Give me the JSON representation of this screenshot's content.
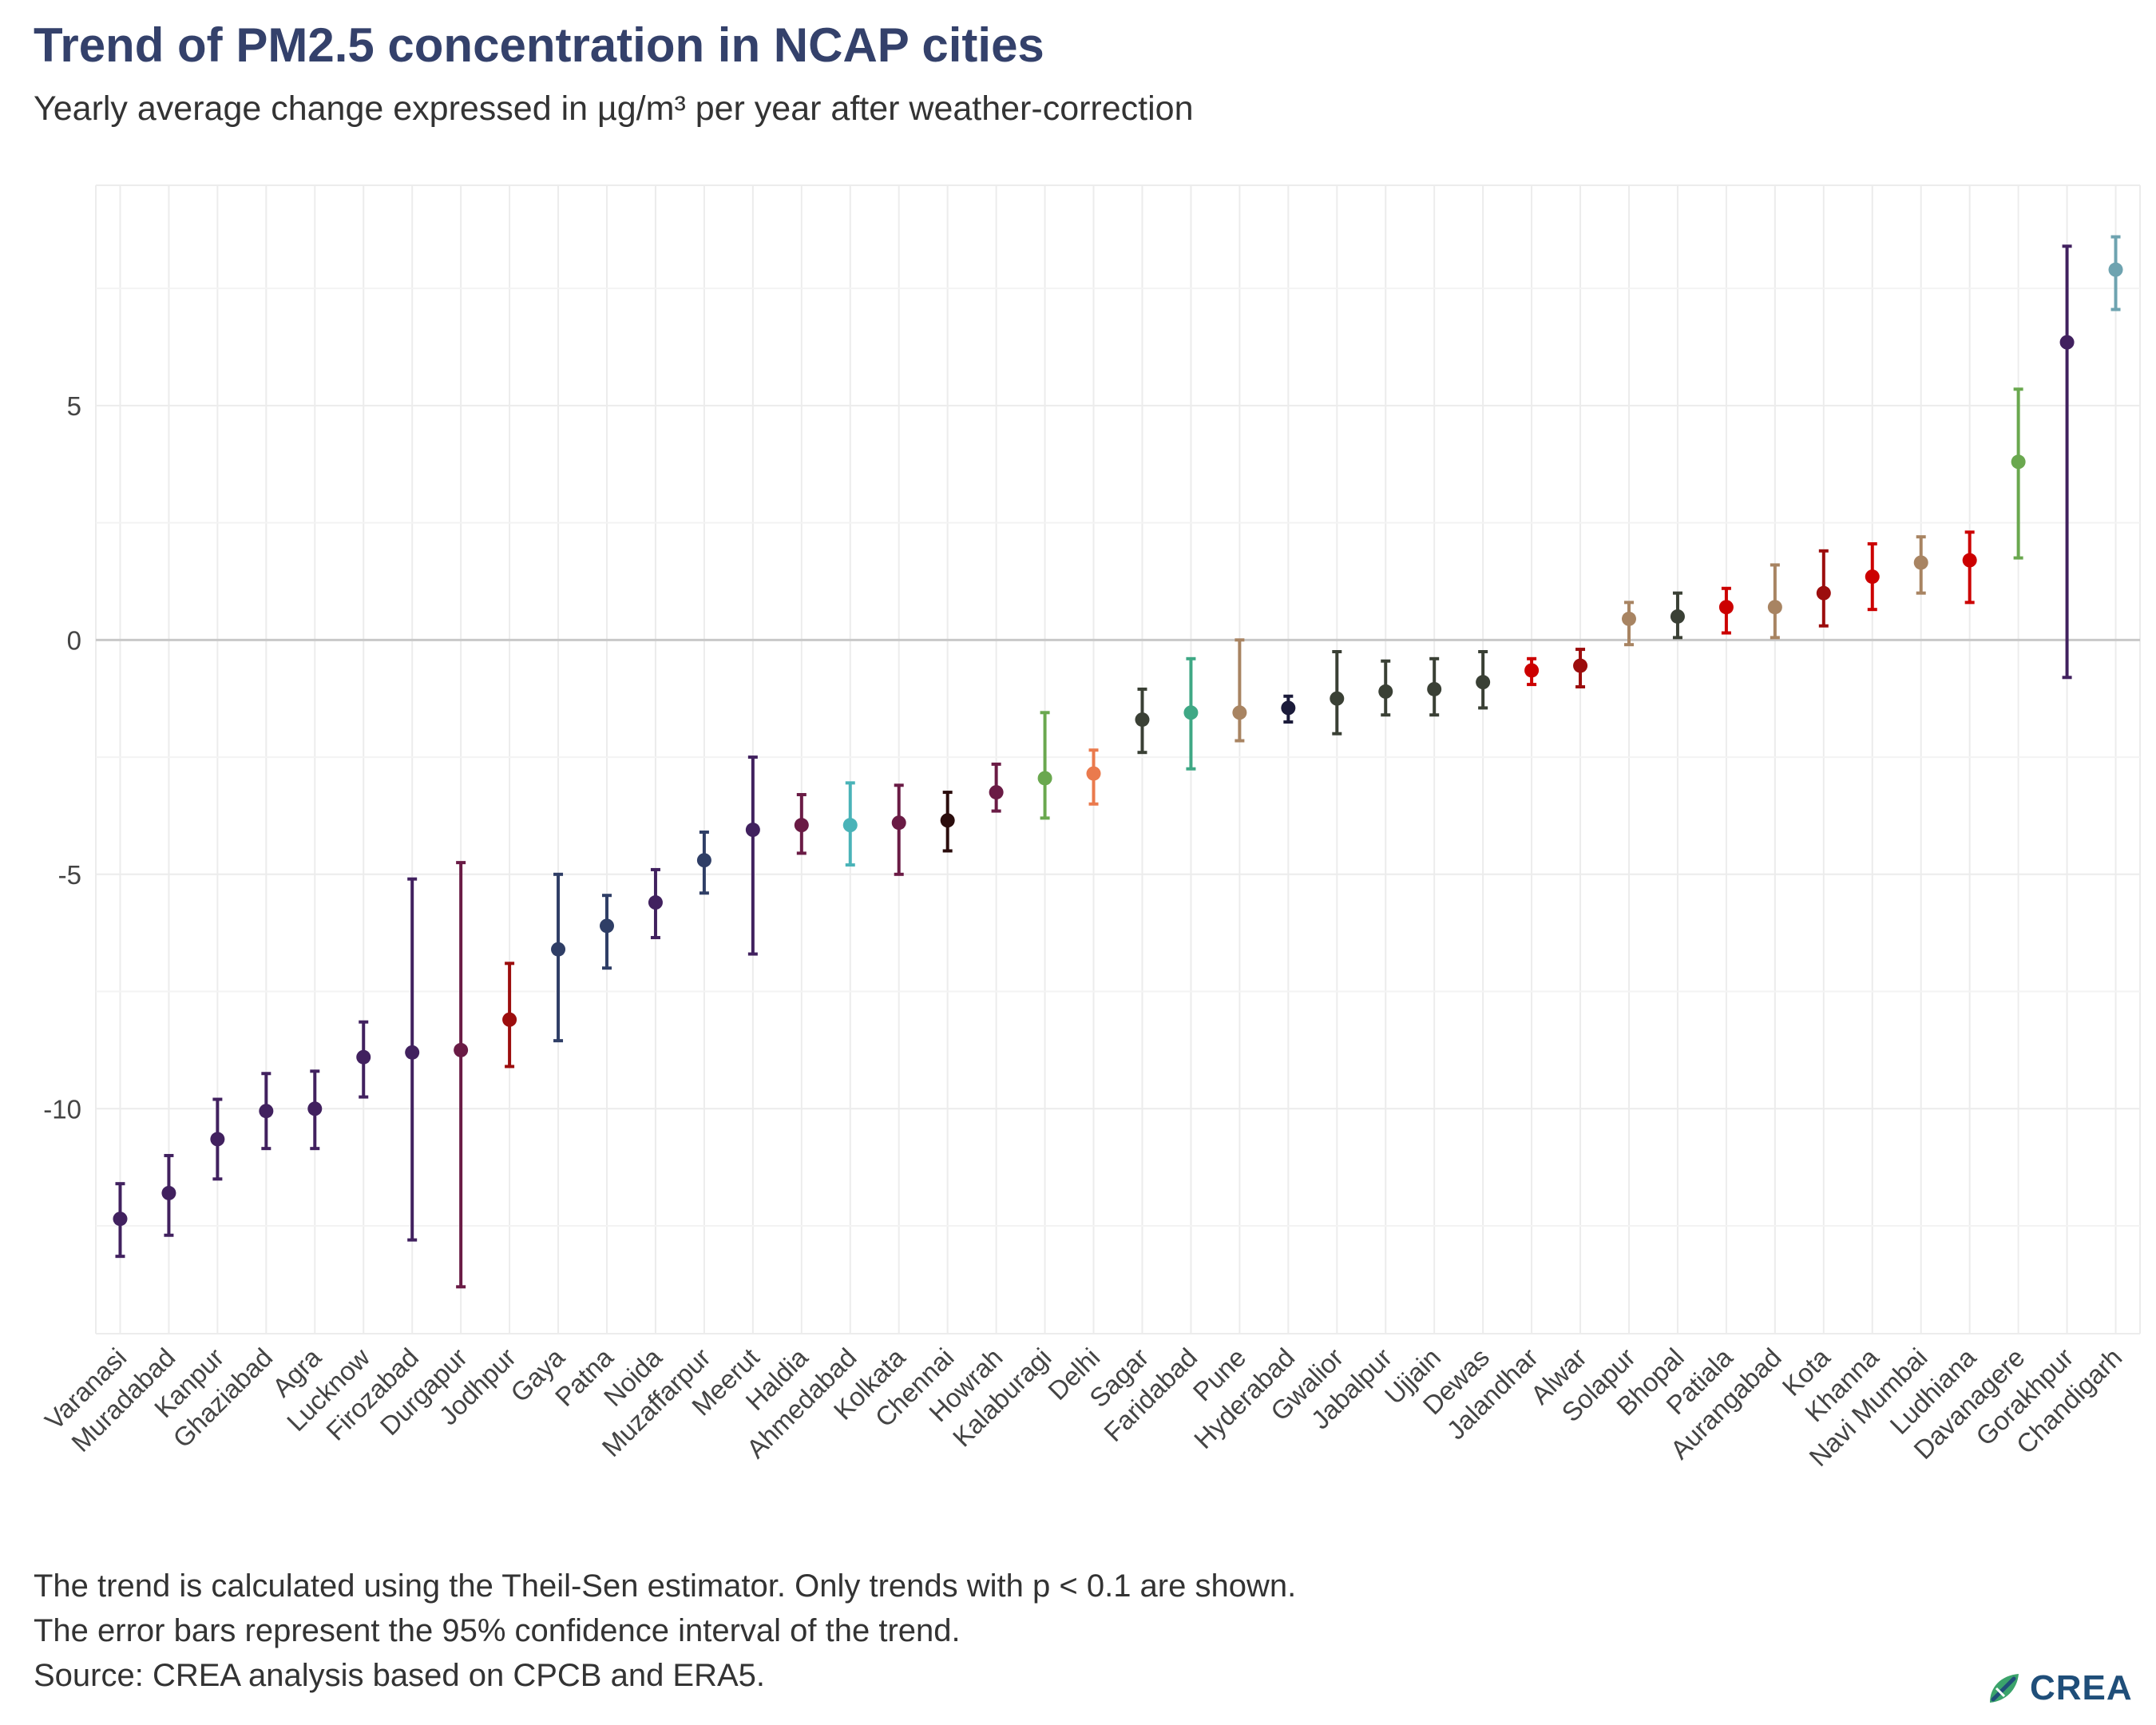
{
  "title": "Trend of PM2.5 concentration in NCAP cities",
  "subtitle": "Yearly average change expressed in µg/m³ per year after weather-correction",
  "caption": [
    "The trend is calculated using the Theil-Sen estimator. Only trends with p < 0.1 are shown.",
    "The error bars represent the 95% confidence interval of the trend.",
    "Source: CREA analysis based on CPCB and ERA5."
  ],
  "logo": {
    "text": "CREA",
    "icon": "crea-leaf-icon",
    "colors": [
      "#3ba36b",
      "#1f4e79"
    ]
  },
  "chart_data": {
    "type": "scatter",
    "title": "Trend of PM2.5 concentration in NCAP cities",
    "subtitle": "Yearly average change expressed in µg/m³ per year after weather-correction",
    "xlabel": "",
    "ylabel": "",
    "ylim": [
      -14.8,
      9.7
    ],
    "yticks": [
      -10,
      -5,
      0,
      5
    ],
    "ytick_labels": [
      "-10",
      "-5",
      "0",
      "5"
    ],
    "grid": true,
    "zero_line": true,
    "points": [
      {
        "city": "Varanasi",
        "value": -12.35,
        "lo": -13.15,
        "hi": -11.6,
        "color": "#41215f"
      },
      {
        "city": "Muradabad",
        "value": -11.8,
        "lo": -12.7,
        "hi": -11.0,
        "color": "#41215f"
      },
      {
        "city": "Kanpur",
        "value": -10.65,
        "lo": -11.5,
        "hi": -9.8,
        "color": "#41215f"
      },
      {
        "city": "Ghaziabad",
        "value": -10.05,
        "lo": -10.85,
        "hi": -9.25,
        "color": "#41215f"
      },
      {
        "city": "Agra",
        "value": -10.0,
        "lo": -10.85,
        "hi": -9.2,
        "color": "#41215f"
      },
      {
        "city": "Lucknow",
        "value": -8.9,
        "lo": -9.75,
        "hi": -8.15,
        "color": "#41215f"
      },
      {
        "city": "Firozabad",
        "value": -8.8,
        "lo": -12.8,
        "hi": -5.1,
        "color": "#41215f"
      },
      {
        "city": "Durgapur",
        "value": -8.75,
        "lo": -13.8,
        "hi": -4.75,
        "color": "#6a1b45"
      },
      {
        "city": "Jodhpur",
        "value": -8.1,
        "lo": -9.1,
        "hi": -6.9,
        "color": "#9c0d0d"
      },
      {
        "city": "Gaya",
        "value": -6.6,
        "lo": -8.55,
        "hi": -5.0,
        "color": "#2f3e66"
      },
      {
        "city": "Patna",
        "value": -6.1,
        "lo": -7.0,
        "hi": -5.45,
        "color": "#2f3e66"
      },
      {
        "city": "Noida",
        "value": -5.6,
        "lo": -6.35,
        "hi": -4.9,
        "color": "#41215f"
      },
      {
        "city": "Muzaffarpur",
        "value": -4.7,
        "lo": -5.4,
        "hi": -4.1,
        "color": "#2f3e66"
      },
      {
        "city": "Meerut",
        "value": -4.05,
        "lo": -6.7,
        "hi": -2.5,
        "color": "#41215f"
      },
      {
        "city": "Haldia",
        "value": -3.95,
        "lo": -4.55,
        "hi": -3.3,
        "color": "#6a1b45"
      },
      {
        "city": "Ahmedabad",
        "value": -3.95,
        "lo": -4.8,
        "hi": -3.05,
        "color": "#4ab3b8"
      },
      {
        "city": "Kolkata",
        "value": -3.9,
        "lo": -5.0,
        "hi": -3.1,
        "color": "#6a1b45"
      },
      {
        "city": "Chennai",
        "value": -3.85,
        "lo": -4.5,
        "hi": -3.25,
        "color": "#2b0d0d"
      },
      {
        "city": "Howrah",
        "value": -3.25,
        "lo": -3.65,
        "hi": -2.65,
        "color": "#6a1b45"
      },
      {
        "city": "Kalaburagi",
        "value": -2.95,
        "lo": -3.8,
        "hi": -1.55,
        "color": "#6aa84f"
      },
      {
        "city": "Delhi",
        "value": -2.85,
        "lo": -3.5,
        "hi": -2.35,
        "color": "#ea7a4d"
      },
      {
        "city": "Sagar",
        "value": -1.7,
        "lo": -2.4,
        "hi": -1.05,
        "color": "#3a4035"
      },
      {
        "city": "Faridabad",
        "value": -1.55,
        "lo": -2.75,
        "hi": -0.4,
        "color": "#3fa885"
      },
      {
        "city": "Pune",
        "value": -1.55,
        "lo": -2.15,
        "hi": 0.0,
        "color": "#a88462"
      },
      {
        "city": "Hyderabad",
        "value": -1.45,
        "lo": -1.75,
        "hi": -1.2,
        "color": "#1b1b3a"
      },
      {
        "city": "Gwalior",
        "value": -1.25,
        "lo": -2.0,
        "hi": -0.25,
        "color": "#3a4035"
      },
      {
        "city": "Jabalpur",
        "value": -1.1,
        "lo": -1.6,
        "hi": -0.45,
        "color": "#3a4035"
      },
      {
        "city": "Ujjain",
        "value": -1.05,
        "lo": -1.6,
        "hi": -0.4,
        "color": "#3a4035"
      },
      {
        "city": "Dewas",
        "value": -0.9,
        "lo": -1.45,
        "hi": -0.25,
        "color": "#3a4035"
      },
      {
        "city": "Jalandhar",
        "value": -0.65,
        "lo": -0.95,
        "hi": -0.4,
        "color": "#cc0000"
      },
      {
        "city": "Alwar",
        "value": -0.55,
        "lo": -1.0,
        "hi": -0.2,
        "color": "#9c0d0d"
      },
      {
        "city": "Solapur",
        "value": 0.45,
        "lo": -0.1,
        "hi": 0.8,
        "color": "#a88462"
      },
      {
        "city": "Bhopal",
        "value": 0.5,
        "lo": 0.05,
        "hi": 1.0,
        "color": "#3a4035"
      },
      {
        "city": "Patiala",
        "value": 0.7,
        "lo": 0.15,
        "hi": 1.1,
        "color": "#cc0000"
      },
      {
        "city": "Aurangabad",
        "value": 0.7,
        "lo": 0.05,
        "hi": 1.6,
        "color": "#a88462"
      },
      {
        "city": "Kota",
        "value": 1.0,
        "lo": 0.3,
        "hi": 1.9,
        "color": "#9c0d0d"
      },
      {
        "city": "Khanna",
        "value": 1.35,
        "lo": 0.65,
        "hi": 2.05,
        "color": "#cc0000"
      },
      {
        "city": "Navi Mumbai",
        "value": 1.65,
        "lo": 1.0,
        "hi": 2.2,
        "color": "#a88462"
      },
      {
        "city": "Ludhiana",
        "value": 1.7,
        "lo": 0.8,
        "hi": 2.3,
        "color": "#cc0000"
      },
      {
        "city": "Davanagere",
        "value": 3.8,
        "lo": 1.75,
        "hi": 5.35,
        "color": "#6aa84f"
      },
      {
        "city": "Gorakhpur",
        "value": 6.35,
        "lo": -0.8,
        "hi": 8.4,
        "color": "#41215f"
      },
      {
        "city": "Chandigarh",
        "value": 7.9,
        "lo": 7.05,
        "hi": 8.6,
        "color": "#6ea3b0"
      }
    ]
  }
}
